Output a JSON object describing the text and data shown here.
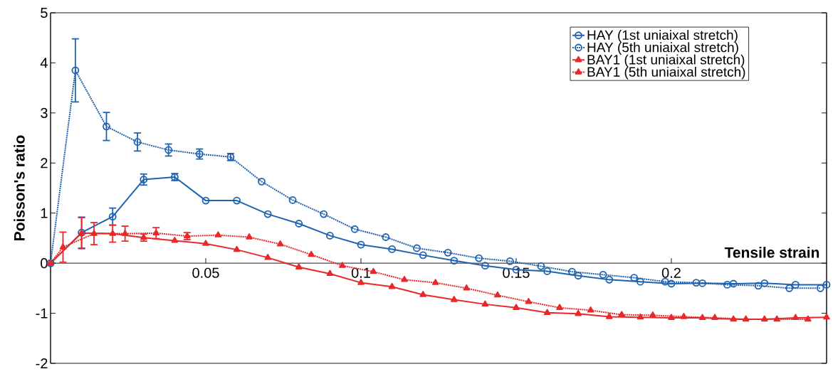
{
  "chart_data": {
    "type": "line",
    "xlabel": "Tensile strain",
    "ylabel": "Poisson's ratio",
    "xlim": [
      0,
      0.25
    ],
    "ylim": [
      -2,
      5
    ],
    "xticks": [
      0.05,
      0.1,
      0.15,
      0.2
    ],
    "yticks": [
      -2,
      -1,
      0,
      1,
      2,
      3,
      4,
      5
    ],
    "legend": "top right",
    "grid": false,
    "series": [
      {
        "name": "HAY (1st uniaixal stretch)",
        "color": "#1f63b0",
        "marker": "circle",
        "line_style": "solid",
        "x": [
          0,
          0.01,
          0.02,
          0.03,
          0.04,
          0.05,
          0.06,
          0.07,
          0.08,
          0.09,
          0.1,
          0.11,
          0.12,
          0.13,
          0.14,
          0.15,
          0.16,
          0.17,
          0.18,
          0.19,
          0.2,
          0.21,
          0.22,
          0.23,
          0.24,
          0.25
        ],
        "values": [
          0,
          0.61,
          0.93,
          1.67,
          1.72,
          1.25,
          1.25,
          0.98,
          0.79,
          0.55,
          0.37,
          0.28,
          0.16,
          0.05,
          -0.05,
          -0.13,
          -0.16,
          -0.25,
          -0.33,
          -0.37,
          -0.41,
          -0.4,
          -0.41,
          -0.4,
          -0.43,
          -0.43
        ],
        "errors": [
          null,
          0.31,
          0.17,
          0.11,
          0.07,
          null,
          null,
          null,
          null,
          null,
          null,
          null,
          null,
          null,
          null,
          null,
          null,
          null,
          null,
          null,
          null,
          null,
          null,
          null,
          null,
          null
        ]
      },
      {
        "name": "HAY (5th uniaixal stretch)",
        "color": "#1f63b0",
        "marker": "circle",
        "line_style": "dotted",
        "x": [
          0,
          0.008,
          0.018,
          0.028,
          0.038,
          0.048,
          0.058,
          0.068,
          0.078,
          0.088,
          0.098,
          0.108,
          0.118,
          0.128,
          0.138,
          0.148,
          0.158,
          0.168,
          0.178,
          0.188,
          0.198,
          0.208,
          0.218,
          0.228,
          0.238,
          0.248
        ],
        "values": [
          0,
          3.85,
          2.73,
          2.42,
          2.26,
          2.18,
          2.12,
          1.63,
          1.26,
          0.98,
          0.68,
          0.52,
          0.3,
          0.21,
          0.1,
          0.04,
          -0.06,
          -0.17,
          -0.23,
          -0.29,
          -0.37,
          -0.39,
          -0.43,
          -0.45,
          -0.5,
          -0.5
        ],
        "errors": [
          null,
          0.63,
          0.28,
          0.18,
          0.12,
          0.1,
          0.07,
          null,
          null,
          null,
          null,
          null,
          null,
          null,
          null,
          null,
          null,
          null,
          null,
          null,
          null,
          null,
          null,
          null,
          null,
          null
        ]
      },
      {
        "name": "BAY1 (1st uniaixal stretch)",
        "color": "#e8282b",
        "marker": "triangle",
        "line_style": "solid",
        "x": [
          0,
          0.01,
          0.02,
          0.03,
          0.04,
          0.05,
          0.06,
          0.07,
          0.08,
          0.09,
          0.1,
          0.11,
          0.12,
          0.13,
          0.14,
          0.15,
          0.16,
          0.17,
          0.18,
          0.19,
          0.2,
          0.21,
          0.22,
          0.23,
          0.24,
          0.25
        ],
        "values": [
          0,
          0.6,
          0.59,
          0.51,
          0.45,
          0.39,
          0.27,
          0.11,
          -0.08,
          -0.21,
          -0.39,
          -0.47,
          -0.63,
          -0.73,
          -0.82,
          -0.89,
          -0.99,
          -1.01,
          -1.07,
          -1.08,
          -1.09,
          -1.09,
          -1.12,
          -1.12,
          -1.09,
          -1.08
        ],
        "errors": [
          null,
          0.31,
          0.17,
          0.07,
          null,
          null,
          null,
          null,
          null,
          null,
          null,
          null,
          null,
          null,
          null,
          null,
          null,
          null,
          null,
          null,
          null,
          null,
          null,
          null,
          null,
          null
        ]
      },
      {
        "name": "BAY1 (5th uniaixal stretch)",
        "color": "#e8282b",
        "marker": "triangle",
        "line_style": "dotted",
        "x": [
          0,
          0.004,
          0.014,
          0.024,
          0.034,
          0.044,
          0.054,
          0.064,
          0.074,
          0.084,
          0.094,
          0.104,
          0.114,
          0.124,
          0.134,
          0.144,
          0.154,
          0.164,
          0.174,
          0.184,
          0.194,
          0.204,
          0.214,
          0.224,
          0.234,
          0.244
        ],
        "values": [
          0,
          0.32,
          0.59,
          0.59,
          0.6,
          0.54,
          0.56,
          0.52,
          0.38,
          0.17,
          -0.05,
          -0.17,
          -0.33,
          -0.39,
          -0.5,
          -0.64,
          -0.77,
          -0.89,
          -0.94,
          -1.03,
          -1.04,
          -1.07,
          -1.09,
          -1.12,
          -1.12,
          -1.12
        ],
        "errors": [
          null,
          0.3,
          0.22,
          0.15,
          0.11,
          0.07,
          null,
          null,
          null,
          null,
          null,
          null,
          null,
          null,
          null,
          null,
          null,
          null,
          null,
          null,
          null,
          null,
          null,
          null,
          null,
          null
        ]
      }
    ]
  }
}
